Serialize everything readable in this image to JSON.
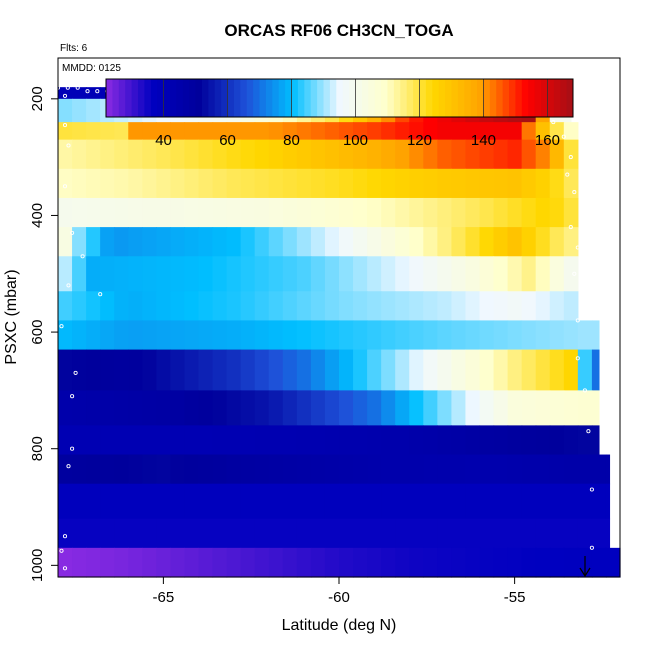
{
  "chart_data": {
    "type": "heatmap",
    "title": "ORCAS RF06 CH3CN_TOGA",
    "flights_note": "Flts: 6",
    "date_note": "MMDD: 0125",
    "xlabel": "Latitude (deg N)",
    "ylabel": "PSXC (mbar)",
    "xlim": [
      -68.0,
      -52.0
    ],
    "ylim": [
      1020,
      130
    ],
    "x_ticks": [
      -65,
      -60,
      -55
    ],
    "x_tick_labels": [
      "-65",
      "-60",
      "-55"
    ],
    "y_ticks": [
      200,
      400,
      600,
      800,
      1000
    ],
    "y_tick_labels": [
      "200",
      "400",
      "600",
      "800",
      "1000"
    ],
    "colorbar": {
      "range": [
        22,
        168
      ],
      "ticks": [
        40,
        60,
        80,
        100,
        120,
        140,
        160
      ],
      "tick_labels": [
        "40",
        "60",
        "80",
        "100",
        "120",
        "140",
        "160"
      ],
      "colors": [
        "#8a2be2",
        "#0000c0",
        "#00009c",
        "#1e50d8",
        "#00bfff",
        "#f0f8ff",
        "#ffffcc",
        "#ffd700",
        "#ffa500",
        "#ff0000",
        "#a50f15"
      ]
    },
    "bands": [
      {
        "p_top": 180,
        "p_bot": 200,
        "lat_end": -53.7,
        "values": [
          [
            -68.0,
            40
          ],
          [
            -65.0,
            42
          ],
          [
            -62.0,
            45
          ],
          [
            -59.0,
            48
          ],
          [
            -57.0,
            60
          ],
          [
            -55.0,
            70
          ],
          [
            -54.3,
            85
          ],
          [
            -53.8,
            110
          ]
        ]
      },
      {
        "p_top": 200,
        "p_bot": 240,
        "lat_end": -53.4,
        "values": [
          [
            -68.0,
            88
          ],
          [
            -63.0,
            100
          ],
          [
            -60.0,
            120
          ],
          [
            -58.0,
            150
          ],
          [
            -56.0,
            162
          ],
          [
            -54.5,
            168
          ],
          [
            -53.8,
            100
          ]
        ]
      },
      {
        "p_top": 240,
        "p_bot": 270,
        "lat_end": -53.2,
        "values": [
          [
            -68.0,
            120
          ],
          [
            -66.0,
            118
          ],
          [
            -65.9,
            140
          ],
          [
            -62.0,
            140
          ],
          [
            -59.0,
            148
          ],
          [
            -57.0,
            155
          ],
          [
            -55.0,
            155
          ],
          [
            -53.5,
            110
          ]
        ]
      },
      {
        "p_top": 270,
        "p_bot": 320,
        "lat_end": -53.2,
        "values": [
          [
            -68.0,
            112
          ],
          [
            -65.0,
            118
          ],
          [
            -62.0,
            125
          ],
          [
            -59.0,
            135
          ],
          [
            -57.0,
            145
          ],
          [
            -55.0,
            150
          ],
          [
            -54.0,
            140
          ],
          [
            -53.4,
            120
          ]
        ]
      },
      {
        "p_top": 320,
        "p_bot": 370,
        "lat_end": -53.2,
        "values": [
          [
            -68.0,
            110
          ],
          [
            -66.0,
            112
          ],
          [
            -63.0,
            118
          ],
          [
            -60.0,
            122
          ],
          [
            -57.0,
            128
          ],
          [
            -55.0,
            130
          ],
          [
            -54.0,
            125
          ],
          [
            -53.4,
            118
          ]
        ]
      },
      {
        "p_top": 370,
        "p_bot": 420,
        "lat_end": -53.2,
        "values": [
          [
            -68.0,
            100
          ],
          [
            -65.0,
            102
          ],
          [
            -62.0,
            104
          ],
          [
            -59.0,
            110
          ],
          [
            -56.0,
            118
          ],
          [
            -54.0,
            125
          ],
          [
            -53.4,
            120
          ]
        ]
      },
      {
        "p_top": 420,
        "p_bot": 470,
        "lat_end": -53.2,
        "values": [
          [
            -68.0,
            112
          ],
          [
            -67.5,
            90
          ],
          [
            -66.5,
            75
          ],
          [
            -63.0,
            80
          ],
          [
            -60.0,
            95
          ],
          [
            -57.0,
            115
          ],
          [
            -55.0,
            130
          ],
          [
            -53.5,
            115
          ]
        ]
      },
      {
        "p_top": 470,
        "p_bot": 530,
        "lat_end": -53.2,
        "values": [
          [
            -68.0,
            95
          ],
          [
            -67.0,
            78
          ],
          [
            -64.0,
            80
          ],
          [
            -61.0,
            85
          ],
          [
            -58.0,
            95
          ],
          [
            -56.0,
            105
          ],
          [
            -54.5,
            115
          ],
          [
            -53.5,
            100
          ]
        ]
      },
      {
        "p_top": 530,
        "p_bot": 580,
        "lat_end": -53.2,
        "values": [
          [
            -68.0,
            85
          ],
          [
            -66.0,
            78
          ],
          [
            -63.0,
            82
          ],
          [
            -60.0,
            88
          ],
          [
            -57.0,
            92
          ],
          [
            -55.0,
            97
          ],
          [
            -53.5,
            92
          ]
        ]
      },
      {
        "p_top": 580,
        "p_bot": 630,
        "lat_end": -52.6,
        "values": [
          [
            -68.0,
            80
          ],
          [
            -66.0,
            76
          ],
          [
            -63.0,
            78
          ],
          [
            -60.0,
            82
          ],
          [
            -57.0,
            86
          ],
          [
            -55.0,
            88
          ],
          [
            -53.0,
            90
          ]
        ]
      },
      {
        "p_top": 630,
        "p_bot": 700,
        "lat_end": -52.6,
        "values": [
          [
            -68.0,
            52
          ],
          [
            -66.0,
            50
          ],
          [
            -63.0,
            60
          ],
          [
            -61.0,
            70
          ],
          [
            -59.0,
            85
          ],
          [
            -57.0,
            100
          ],
          [
            -55.0,
            115
          ],
          [
            -53.3,
            125
          ],
          [
            -52.9,
            70
          ]
        ]
      },
      {
        "p_top": 700,
        "p_bot": 760,
        "lat_end": -52.6,
        "values": [
          [
            -68.0,
            45
          ],
          [
            -65.0,
            48
          ],
          [
            -62.0,
            55
          ],
          [
            -59.0,
            70
          ],
          [
            -57.0,
            88
          ],
          [
            -55.0,
            105
          ],
          [
            -53.0,
            108
          ]
        ]
      },
      {
        "p_top": 760,
        "p_bot": 810,
        "lat_end": -52.6,
        "values": [
          [
            -68.0,
            42
          ],
          [
            -64.0,
            42
          ],
          [
            -61.0,
            43
          ],
          [
            -58.0,
            45
          ],
          [
            -55.0,
            50
          ],
          [
            -53.0,
            52
          ]
        ]
      },
      {
        "p_top": 810,
        "p_bot": 860,
        "lat_end": -52.3,
        "values": [
          [
            -68.0,
            50
          ],
          [
            -65.0,
            52
          ],
          [
            -62.0,
            48
          ],
          [
            -59.0,
            45
          ],
          [
            -56.0,
            44
          ],
          [
            -53.0,
            46
          ]
        ]
      },
      {
        "p_top": 860,
        "p_bot": 920,
        "lat_end": -52.3,
        "values": [
          [
            -68.0,
            38
          ],
          [
            -64.0,
            38
          ],
          [
            -60.0,
            38
          ],
          [
            -56.0,
            38
          ],
          [
            -53.0,
            38
          ]
        ]
      },
      {
        "p_top": 920,
        "p_bot": 970,
        "lat_end": -52.3,
        "values": [
          [
            -68.0,
            36
          ],
          [
            -64.0,
            36
          ],
          [
            -60.0,
            36
          ],
          [
            -56.0,
            36
          ],
          [
            -53.0,
            36
          ]
        ]
      },
      {
        "p_top": 970,
        "p_bot": 1020,
        "lat_end": -52.0,
        "values": [
          [
            -68.0,
            22
          ],
          [
            -66.0,
            24
          ],
          [
            -64.0,
            27
          ],
          [
            -62.0,
            30
          ],
          [
            -60.0,
            33
          ],
          [
            -58.0,
            35
          ],
          [
            -56.0,
            36
          ],
          [
            -53.0,
            37
          ]
        ]
      }
    ]
  }
}
